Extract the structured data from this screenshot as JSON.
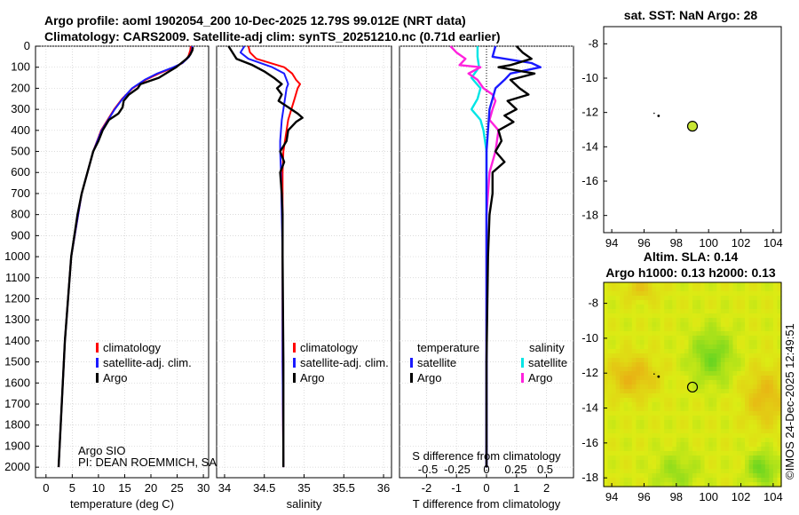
{
  "header": {
    "line1": "Argo profile: aoml 1902054_200 10-Dec-2025 12.79S 99.012E (NRT data)",
    "line2": "Climatology: CARS2009. Satellite-adj clim: synTS_20251210.nc (0.71d earlier)"
  },
  "side_stamp": "©IMOS 24-Dec-2025 12:49:51",
  "colors": {
    "climatology": "#ff0000",
    "satellite": "#1a1aff",
    "argo": "#000000",
    "sat_salt": "#00e5e5",
    "argo_salt": "#ff22dd",
    "marker": "#c8e632"
  },
  "chart_data": [
    {
      "type": "line",
      "name": "temperature",
      "xlabel": "temperature (deg C)",
      "ylabel": "",
      "xlim": [
        -2,
        31
      ],
      "ylim": [
        2050,
        0
      ],
      "xticks": [
        0,
        5,
        10,
        15,
        20,
        25,
        30
      ],
      "yticks": [
        0,
        100,
        200,
        300,
        400,
        500,
        600,
        700,
        800,
        900,
        1000,
        1100,
        1200,
        1300,
        1400,
        1500,
        1600,
        1700,
        1800,
        1900,
        2000
      ],
      "legend": [
        "climatology",
        "satellite-adj. clim.",
        "Argo"
      ],
      "attribution": [
        "Argo SIO",
        "PI: DEAN ROEMMICH, SARAH"
      ],
      "series": [
        {
          "name": "climatology",
          "depth": [
            0,
            20,
            50,
            80,
            100,
            130,
            160,
            200,
            250,
            300,
            400,
            500,
            700,
            1000,
            1400,
            2000
          ],
          "values": [
            27.6,
            27.5,
            27.1,
            26.0,
            24.5,
            21.5,
            19.0,
            16.5,
            14.5,
            13.0,
            10.5,
            9.0,
            6.8,
            4.8,
            3.6,
            2.4
          ]
        },
        {
          "name": "satellite-adj. clim.",
          "depth": [
            0,
            20,
            50,
            80,
            100,
            130,
            160,
            200,
            250,
            300,
            400,
            500,
            700,
            1000,
            1400,
            2000
          ],
          "values": [
            27.9,
            27.8,
            27.3,
            26.0,
            24.3,
            21.2,
            18.8,
            16.4,
            14.6,
            13.1,
            10.6,
            9.0,
            6.8,
            4.8,
            3.6,
            2.4
          ]
        },
        {
          "name": "Argo",
          "depth": [
            5,
            20,
            40,
            60,
            80,
            100,
            120,
            150,
            180,
            200,
            230,
            260,
            290,
            320,
            350,
            400,
            450,
            500,
            600,
            700,
            800,
            1000,
            1400,
            2000
          ],
          "values": [
            28.0,
            27.9,
            27.5,
            26.8,
            25.8,
            24.8,
            23.5,
            21.5,
            18.0,
            17.5,
            15.8,
            14.8,
            14.6,
            13.8,
            12.0,
            10.8,
            10.0,
            9.0,
            7.9,
            6.8,
            6.0,
            4.8,
            3.6,
            2.4
          ]
        }
      ]
    },
    {
      "type": "line",
      "name": "salinity",
      "xlabel": "salinity",
      "xlim": [
        33.9,
        36.1
      ],
      "ylim": [
        2050,
        0
      ],
      "xticks": [
        34,
        34.5,
        35,
        35.5,
        36
      ],
      "legend": [
        "climatology",
        "satellite-adj. clim.",
        "Argo"
      ],
      "series": [
        {
          "name": "climatology",
          "depth": [
            0,
            30,
            60,
            100,
            130,
            160,
            180,
            200,
            250,
            300,
            350,
            400,
            450,
            500,
            600,
            800,
            1000,
            1500,
            2000
          ],
          "values": [
            34.3,
            34.32,
            34.4,
            34.75,
            34.85,
            34.9,
            34.95,
            34.92,
            34.88,
            34.84,
            34.8,
            34.78,
            34.76,
            34.74,
            34.73,
            34.73,
            34.73,
            34.73,
            34.74
          ]
        },
        {
          "name": "satellite-adj. clim.",
          "depth": [
            0,
            30,
            60,
            100,
            130,
            160,
            180,
            200,
            250,
            300,
            350,
            400,
            450,
            500,
            600,
            800,
            1000,
            1500,
            2000
          ],
          "values": [
            34.25,
            34.2,
            34.3,
            34.6,
            34.75,
            34.78,
            34.8,
            34.78,
            34.76,
            34.74,
            34.72,
            34.71,
            34.7,
            34.7,
            34.71,
            34.72,
            34.73,
            34.73,
            34.74
          ]
        },
        {
          "name": "Argo",
          "depth": [
            0,
            30,
            60,
            90,
            120,
            150,
            180,
            200,
            230,
            260,
            290,
            320,
            340,
            360,
            400,
            450,
            500,
            550,
            600,
            700,
            800,
            1000,
            1500,
            2000
          ],
          "values": [
            34.05,
            34.1,
            34.15,
            34.35,
            34.5,
            34.62,
            34.72,
            34.66,
            34.72,
            34.68,
            34.8,
            34.92,
            34.98,
            34.9,
            34.8,
            34.78,
            34.7,
            34.75,
            34.7,
            34.72,
            34.73,
            34.73,
            34.74,
            34.74
          ]
        }
      ]
    },
    {
      "type": "line",
      "name": "difference",
      "xlabel": "T difference from climatology",
      "top_label": "S difference from climatology",
      "xlim": [
        -2.9,
        2.9
      ],
      "ylim": [
        2050,
        0
      ],
      "xticks": [
        -2,
        -1.5,
        -1,
        -0.5,
        0,
        0.5,
        1,
        1.5,
        2
      ],
      "xtick_labels": [
        "-2",
        "-1.5",
        "-1",
        "-0.5",
        "0",
        "0.5",
        "1",
        "1.5",
        "2"
      ],
      "top_ticks": [
        -0.5,
        -0.25,
        0,
        0.25,
        0.5
      ],
      "top_tick_labels": [
        "-0.5",
        "-0.25",
        "0",
        "0.25",
        "0.5"
      ],
      "legend_titles": [
        "temperature",
        "salinity"
      ],
      "legend_temperature": [
        "satellite",
        "Argo"
      ],
      "legend_salinity": [
        "satellite",
        "Argo"
      ],
      "series": [
        {
          "name": "temperature satellite",
          "depth": [
            0,
            50,
            80,
            100,
            130,
            160,
            200,
            250,
            300,
            400,
            500,
            800,
            1200,
            2000
          ],
          "values": [
            0.3,
            0.2,
            1.5,
            1.8,
            0.8,
            0.6,
            0.3,
            0.2,
            0.1,
            0.05,
            0,
            0,
            0,
            0
          ]
        },
        {
          "name": "temperature Argo",
          "depth": [
            0,
            30,
            60,
            90,
            100,
            130,
            160,
            200,
            230,
            260,
            300,
            330,
            360,
            400,
            450,
            500,
            550,
            600,
            700,
            800,
            1000,
            1500,
            2000
          ],
          "values": [
            1.0,
            1.2,
            1.5,
            0.8,
            0.4,
            1.6,
            0.8,
            1.1,
            1.4,
            0.7,
            1.0,
            0.6,
            0.9,
            0.4,
            0.5,
            0.3,
            0.6,
            0.2,
            0.2,
            0.1,
            0.05,
            0,
            0
          ]
        },
        {
          "name": "salinity satellite",
          "depth": [
            0,
            50,
            100,
            150,
            200,
            250,
            300,
            350,
            400,
            500,
            800,
            2000
          ],
          "values": [
            -0.3,
            -0.3,
            -0.25,
            -0.5,
            -0.2,
            -0.3,
            -0.5,
            -0.2,
            -0.1,
            0,
            0,
            0
          ]
        },
        {
          "name": "salinity Argo",
          "depth": [
            0,
            30,
            60,
            90,
            100,
            130,
            160,
            200,
            230,
            260,
            300,
            350,
            400,
            500,
            600,
            800,
            1500,
            2000
          ],
          "values": [
            -1.2,
            -1.0,
            -0.7,
            -0.9,
            -0.2,
            -0.6,
            -0.3,
            -0.1,
            0.2,
            0.3,
            0.2,
            0.1,
            0.4,
            0.3,
            0.1,
            0,
            0,
            0
          ]
        }
      ]
    },
    {
      "type": "scatter",
      "name": "sst map",
      "title": "sat. SST: NaN Argo: 28",
      "xlim": [
        93.5,
        104.5
      ],
      "ylim": [
        -19,
        -7
      ],
      "xticks": [
        94,
        96,
        98,
        100,
        102,
        104
      ],
      "yticks": [
        -8,
        -10,
        -12,
        -14,
        -16,
        -18
      ],
      "points": [
        {
          "x": 96.9,
          "y": -12.2,
          "kind": "track"
        },
        {
          "x": 99.0,
          "y": -12.8,
          "kind": "argo"
        }
      ]
    },
    {
      "type": "heatmap",
      "name": "sla map",
      "title_line1": "Altim. SLA: 0.14",
      "title_line2": "Argo h1000: 0.13 h2000: 0.13",
      "xlim": [
        93.5,
        104.5
      ],
      "ylim": [
        -18.5,
        -6.8
      ],
      "xticks": [
        94,
        96,
        98,
        100,
        102,
        104
      ],
      "yticks": [
        -8,
        -10,
        -12,
        -14,
        -16,
        -18
      ],
      "points": [
        {
          "x": 96.9,
          "y": -12.2,
          "kind": "track"
        },
        {
          "x": 99.0,
          "y": -12.8,
          "kind": "argo"
        }
      ]
    }
  ]
}
